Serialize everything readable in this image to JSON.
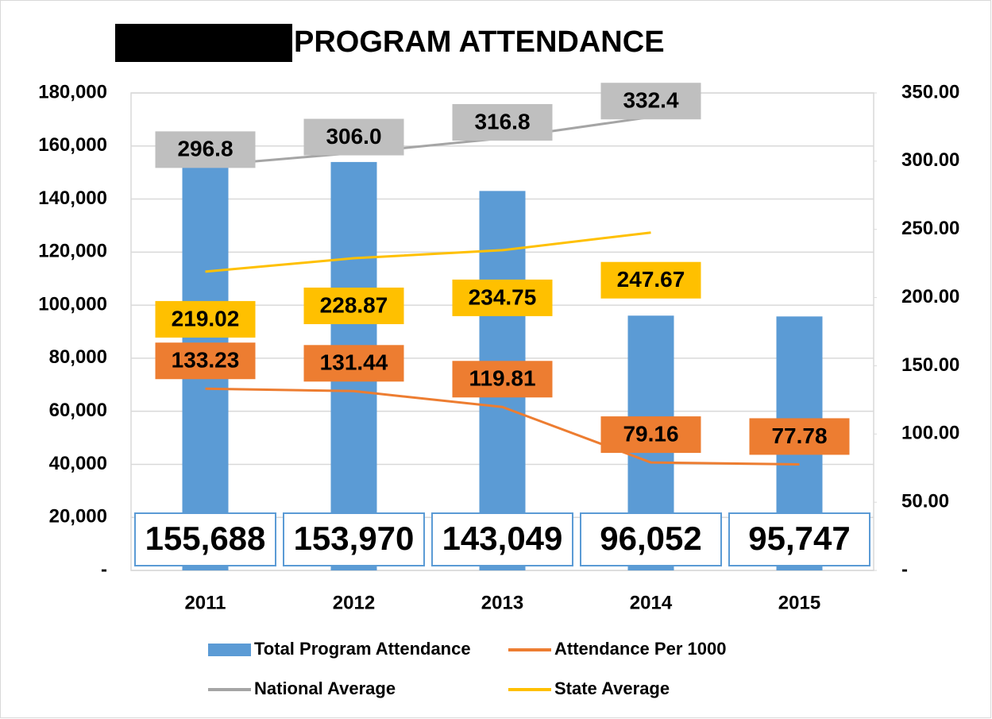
{
  "chart_data": {
    "type": "bar",
    "title": "PROGRAM ATTENDANCE",
    "categories": [
      "2011",
      "2012",
      "2013",
      "2014",
      "2015"
    ],
    "series": [
      {
        "name": "Total Program Attendance",
        "type": "bar",
        "color": "#5b9bd5",
        "values": [
          155688,
          153970,
          143049,
          96052,
          95747
        ],
        "value_labels": [
          "155,688",
          "153,970",
          "143,049",
          "96,052",
          "95,747"
        ]
      },
      {
        "name": "Attendance Per 1000",
        "type": "line",
        "axis": "y2",
        "color": "#ed7d31",
        "values": [
          133.23,
          131.44,
          119.81,
          79.16,
          77.78
        ]
      },
      {
        "name": "National Average",
        "type": "line",
        "axis": "y2",
        "color": "#a5a5a5",
        "values": [
          296.8,
          306.0,
          316.8,
          332.4,
          null
        ],
        "value_labels": [
          "296.8",
          "306.0",
          "316.8",
          "332.4",
          null
        ]
      },
      {
        "name": "State Average",
        "type": "line",
        "axis": "y2",
        "color": "#ffc000",
        "values": [
          219.02,
          228.87,
          234.75,
          247.67,
          null
        ]
      }
    ],
    "ylim": [
      0,
      180000
    ],
    "yticks": [
      {
        "value": 0,
        "label": "-"
      },
      {
        "value": 20000,
        "label": "20,000"
      },
      {
        "value": 40000,
        "label": "40,000"
      },
      {
        "value": 60000,
        "label": "60,000"
      },
      {
        "value": 80000,
        "label": "80,000"
      },
      {
        "value": 100000,
        "label": "100,000"
      },
      {
        "value": 120000,
        "label": "120,000"
      },
      {
        "value": 140000,
        "label": "140,000"
      },
      {
        "value": 160000,
        "label": "160,000"
      },
      {
        "value": 180000,
        "label": "180,000"
      }
    ],
    "y2lim": [
      0,
      350
    ],
    "y2ticks": [
      {
        "value": 0,
        "label": "-"
      },
      {
        "value": 50,
        "label": "50.00"
      },
      {
        "value": 100,
        "label": "100.00"
      },
      {
        "value": 150,
        "label": "150.00"
      },
      {
        "value": 200,
        "label": "200.00"
      },
      {
        "value": 250,
        "label": "250.00"
      },
      {
        "value": 300,
        "label": "300.00"
      },
      {
        "value": 350,
        "label": "350.00"
      }
    ],
    "grid": true
  }
}
